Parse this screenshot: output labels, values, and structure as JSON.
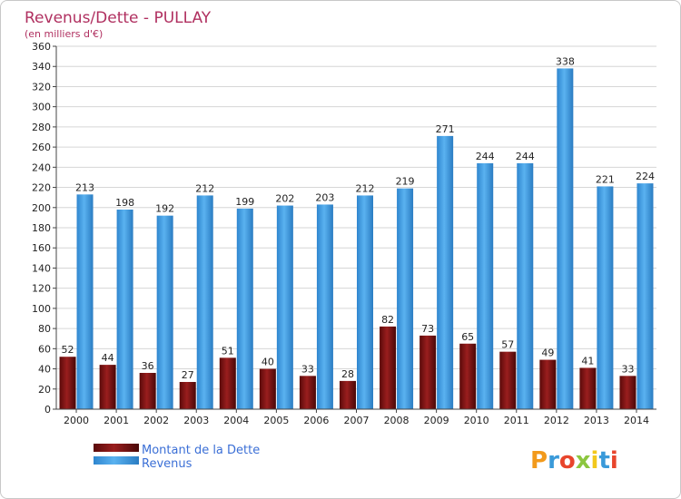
{
  "chart_data": {
    "type": "bar",
    "title": "Revenus/Dette - PULLAY",
    "subtitle": "(en milliers d'€)",
    "categories": [
      "2000",
      "2001",
      "2002",
      "2003",
      "2004",
      "2005",
      "2006",
      "2007",
      "2008",
      "2009",
      "2010",
      "2011",
      "2012",
      "2013",
      "2014"
    ],
    "series": [
      {
        "name": "Montant de la Dette",
        "color": "#7a1010",
        "values": [
          52,
          44,
          36,
          27,
          51,
          40,
          33,
          28,
          82,
          73,
          65,
          57,
          49,
          41,
          33
        ]
      },
      {
        "name": "Revenus",
        "color": "#4aa3e8",
        "values": [
          213,
          198,
          192,
          212,
          199,
          202,
          203,
          212,
          219,
          271,
          244,
          244,
          338,
          221,
          224
        ]
      }
    ],
    "ylim": [
      0,
      360
    ],
    "yticks": [
      0,
      20,
      40,
      60,
      80,
      100,
      120,
      140,
      160,
      180,
      200,
      220,
      240,
      260,
      280,
      300,
      320,
      340,
      360
    ],
    "grid": true,
    "legend_position": "bottom-left"
  },
  "logo": {
    "letters": [
      "P",
      "r",
      "o",
      "x",
      "i",
      "t",
      "i"
    ],
    "colors": [
      "#f29a1c",
      "#3a9ad9",
      "#e8452c",
      "#8cc63f",
      "#f2c81c",
      "#3a9ad9",
      "#e8452c"
    ]
  }
}
